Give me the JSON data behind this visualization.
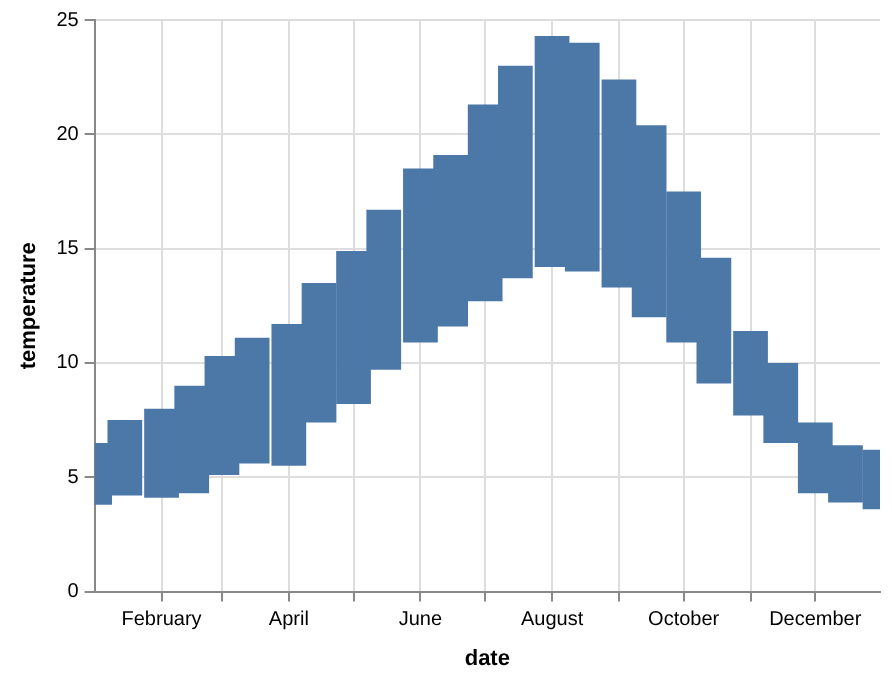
{
  "chart_data": {
    "type": "bar",
    "xlabel": "date",
    "ylabel": "temperature",
    "color": "#4c78a8",
    "x": [
      "--01-01",
      "--01-15",
      "--02-01",
      "--02-15",
      "--03-01",
      "--03-15",
      "--04-01",
      "--04-15",
      "--05-01",
      "--05-15",
      "--06-01",
      "--06-15",
      "--07-01",
      "--07-15",
      "--08-01",
      "--08-15",
      "--09-01",
      "--09-15",
      "--10-01",
      "--10-15",
      "--11-01",
      "--11-15",
      "--12-01",
      "--12-15",
      "--12-31"
    ],
    "base": [
      3.8,
      4.2,
      4.1,
      4.3,
      5.1,
      5.6,
      5.5,
      7.4,
      8.2,
      9.7,
      10.9,
      11.6,
      12.7,
      13.7,
      14.2,
      14.0,
      13.3,
      12.0,
      10.9,
      9.1,
      7.7,
      6.5,
      4.3,
      3.9,
      3.6
    ],
    "values": [
      2.7,
      3.3,
      3.9,
      4.7,
      5.2,
      5.5,
      6.2,
      6.1,
      6.7,
      7.0,
      7.6,
      7.5,
      8.6,
      9.3,
      10.1,
      10.0,
      9.1,
      8.4,
      6.6,
      5.5,
      3.7,
      3.5,
      3.1,
      2.5,
      2.6
    ],
    "xlim": [
      "--01-01",
      "--12-31"
    ],
    "xticks": [
      {
        "value": "--02-01",
        "label": "February"
      },
      {
        "value": "--03-01",
        "label": null
      },
      {
        "value": "--04-01",
        "label": "April"
      },
      {
        "value": "--05-01",
        "label": null
      },
      {
        "value": "--06-01",
        "label": "June"
      },
      {
        "value": "--07-01",
        "label": null
      },
      {
        "value": "--08-01",
        "label": "August"
      },
      {
        "value": "--09-01",
        "label": null
      },
      {
        "value": "--10-01",
        "label": "October"
      },
      {
        "value": "--11-01",
        "label": null
      },
      {
        "value": "--12-01",
        "label": "December"
      }
    ],
    "ylim": [
      0,
      25
    ],
    "yticks": [
      0,
      5,
      10,
      15,
      20,
      25
    ],
    "grid": true,
    "legend": false
  }
}
